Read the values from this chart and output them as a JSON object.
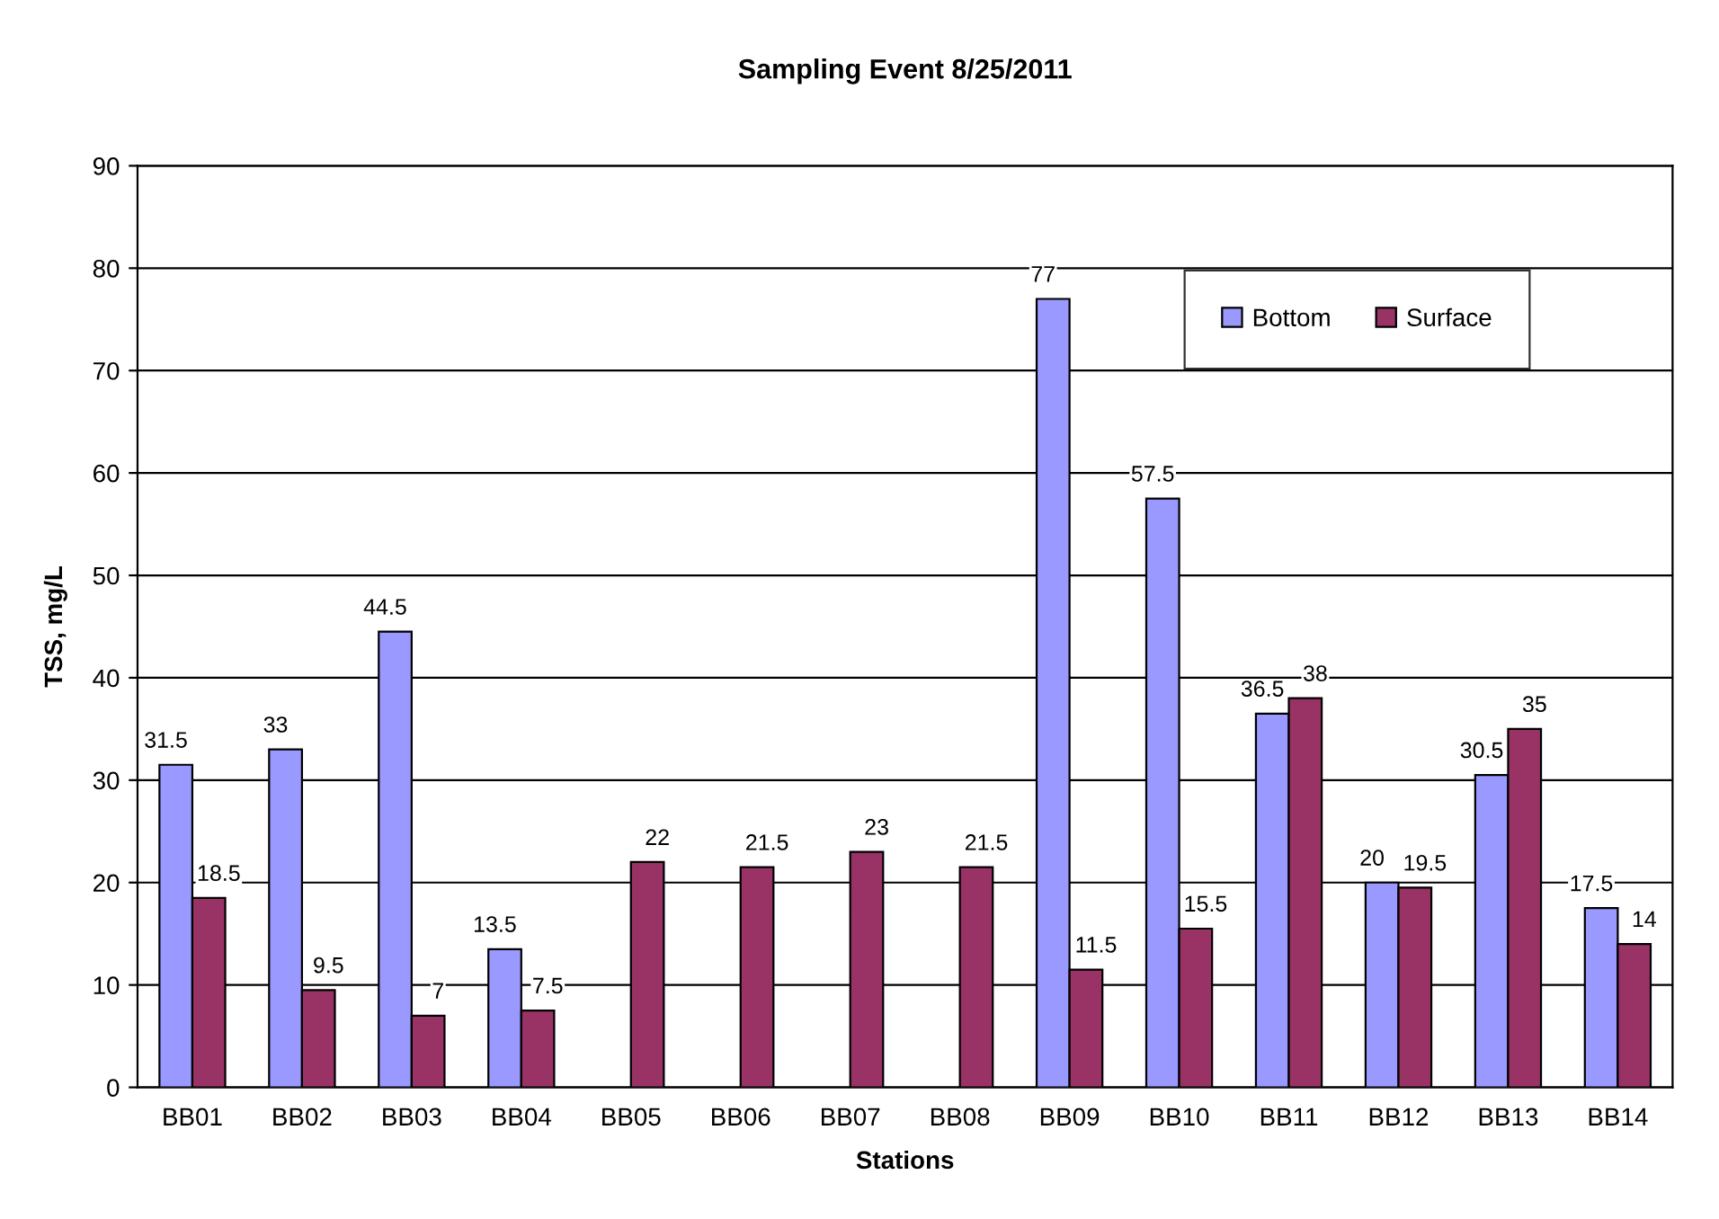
{
  "chart_data": {
    "type": "bar",
    "title": "Sampling Event 8/25/2011",
    "xlabel": "Stations",
    "ylabel": "TSS, mg/L",
    "categories": [
      "BB01",
      "BB02",
      "BB03",
      "BB04",
      "BB05",
      "BB06",
      "BB07",
      "BB08",
      "BB09",
      "BB10",
      "BB11",
      "BB12",
      "BB13",
      "BB14"
    ],
    "series": [
      {
        "name": "Bottom",
        "color": "#9999ff",
        "values": [
          31.5,
          33,
          44.5,
          13.5,
          null,
          null,
          null,
          null,
          77,
          57.5,
          36.5,
          20,
          30.5,
          17.5
        ]
      },
      {
        "name": "Surface",
        "color": "#993366",
        "values": [
          18.5,
          9.5,
          7,
          7.5,
          22,
          21.5,
          23,
          21.5,
          11.5,
          15.5,
          38,
          19.5,
          35,
          14
        ]
      }
    ],
    "ylim": [
      0,
      90
    ],
    "yticks": [
      0,
      10,
      20,
      30,
      40,
      50,
      60,
      70,
      80,
      90
    ],
    "grid": "y",
    "legend": "top right",
    "data_labels": true
  }
}
